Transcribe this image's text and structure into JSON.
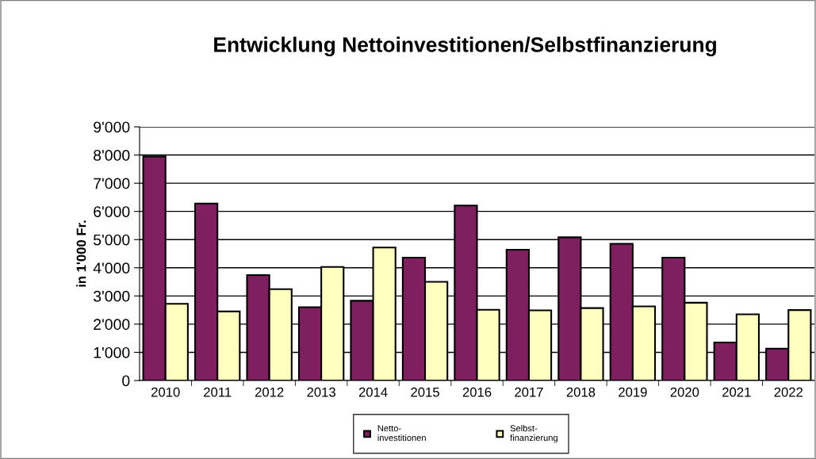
{
  "chart_data": {
    "type": "bar",
    "title": "Entwicklung Nettoinvestitionen/Selbstfinanzierung",
    "ylabel": "in 1'000 Fr.",
    "categories": [
      "2010",
      "2011",
      "2012",
      "2013",
      "2014",
      "2015",
      "2016",
      "2017",
      "2018",
      "2019",
      "2020",
      "2021",
      "2022"
    ],
    "series": [
      {
        "name": "Netto-\ninvestitionen",
        "color": "#7f1f5f",
        "values": [
          7950,
          6280,
          3740,
          2600,
          2830,
          4360,
          6210,
          4640,
          5080,
          4850,
          4360,
          1350,
          1130
        ]
      },
      {
        "name": "Selbst-\nfinanzierung",
        "color": "#ffffc0",
        "values": [
          2720,
          2450,
          3240,
          4030,
          4720,
          3500,
          2510,
          2490,
          2570,
          2630,
          2760,
          2350,
          2500
        ]
      }
    ],
    "ylim": [
      0,
      9000
    ],
    "yticks": [
      0,
      {
        "value": 1000,
        "label": "1'000"
      },
      {
        "value": 2000,
        "label": "2'000"
      },
      {
        "value": 3000,
        "label": "3'000"
      },
      {
        "value": 4000,
        "label": "4'000"
      },
      {
        "value": 5000,
        "label": "5'000"
      },
      {
        "value": 6000,
        "label": "6'000"
      },
      {
        "value": 7000,
        "label": "7'000"
      },
      {
        "value": 8000,
        "label": "8'000"
      },
      {
        "value": 9000,
        "label": "9'000"
      }
    ],
    "grid": "y",
    "legend": "bottom"
  }
}
